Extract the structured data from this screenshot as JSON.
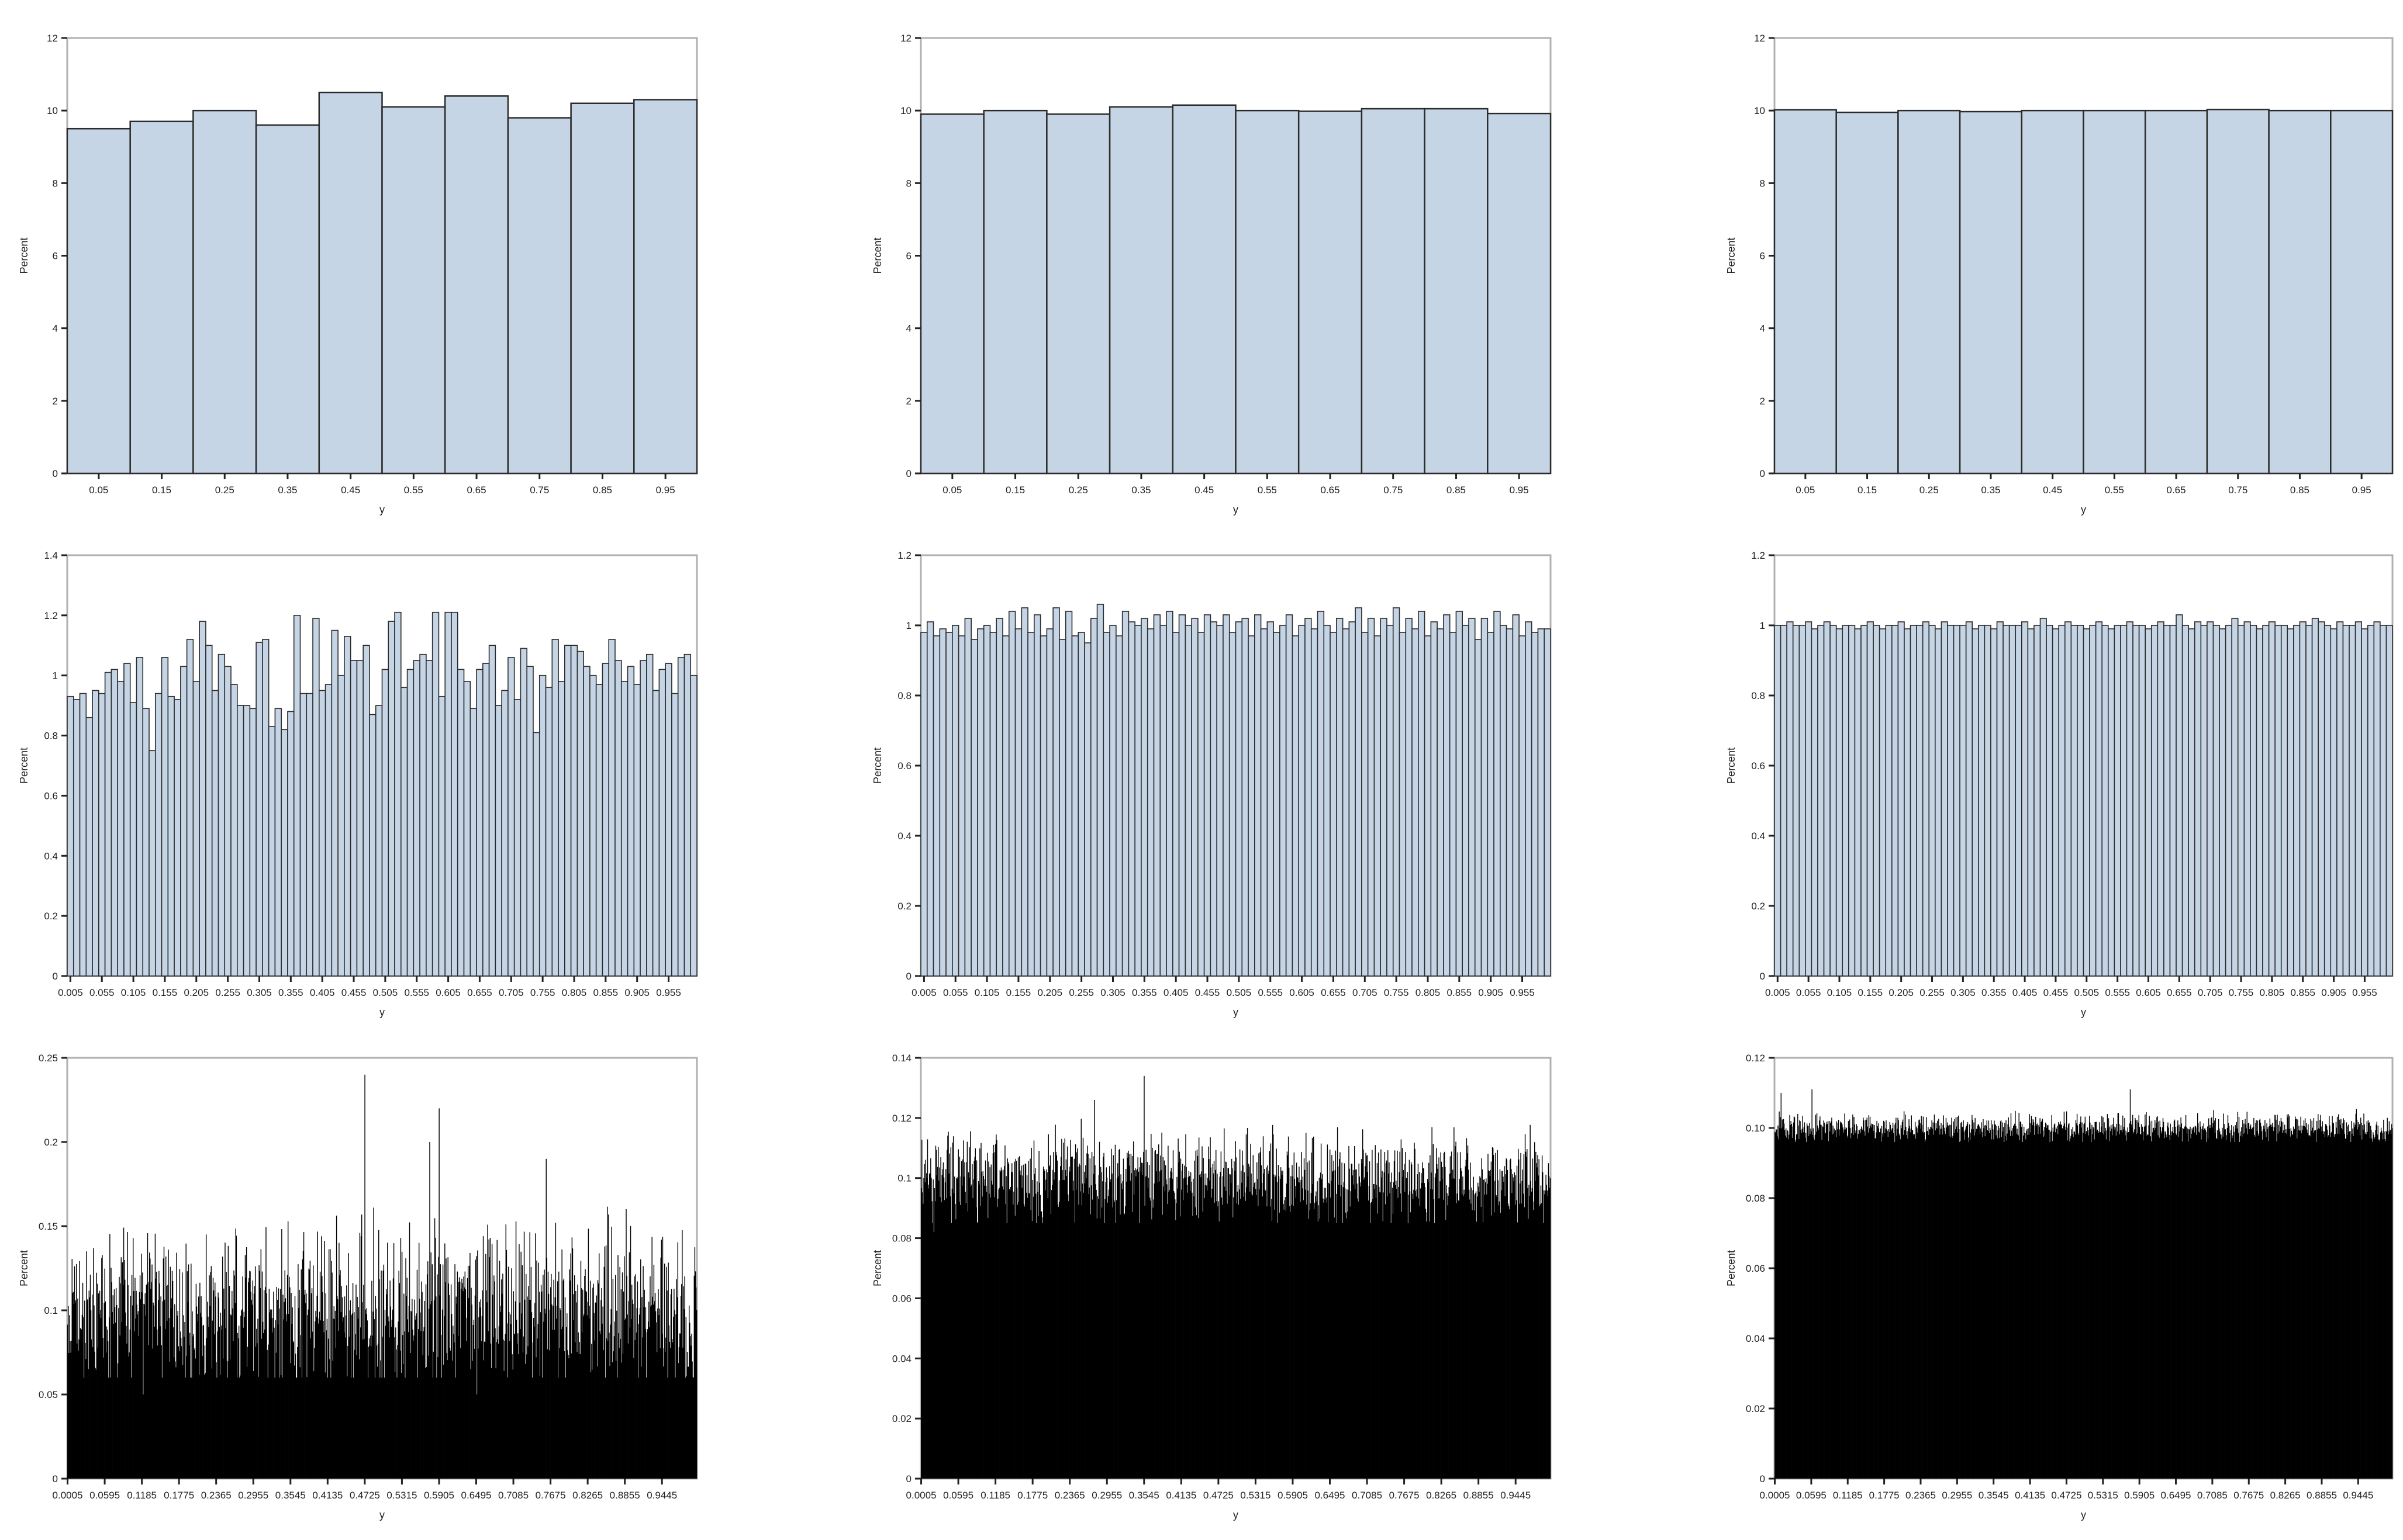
{
  "chart_data": [
    {
      "type": "bar",
      "bar_style": "histogram",
      "bar_fill": "#c5d5e5",
      "bar_stroke": "#2b2b2b",
      "xlabel": "y",
      "ylabel": "Percent",
      "ylim": [
        0,
        12
      ],
      "yticks": [
        0,
        2,
        4,
        6,
        8,
        10,
        12
      ],
      "xlim": [
        0,
        1
      ],
      "bin_width": 0.1,
      "xticks": [
        0.05,
        0.15,
        0.25,
        0.35,
        0.45,
        0.55,
        0.65,
        0.75,
        0.85,
        0.95
      ],
      "xtick_labels": [
        "0.05",
        "0.15",
        "0.25",
        "0.35",
        "0.45",
        "0.55",
        "0.65",
        "0.75",
        "0.85",
        "0.95"
      ],
      "categories": [
        "0.05",
        "0.15",
        "0.25",
        "0.35",
        "0.45",
        "0.55",
        "0.65",
        "0.75",
        "0.85",
        "0.95"
      ],
      "values": [
        9.5,
        9.7,
        10.0,
        9.6,
        10.5,
        10.1,
        10.4,
        9.8,
        10.2,
        10.3
      ]
    },
    {
      "type": "bar",
      "bar_style": "histogram",
      "bar_fill": "#c5d5e5",
      "bar_stroke": "#2b2b2b",
      "xlabel": "y",
      "ylabel": "Percent",
      "ylim": [
        0,
        12
      ],
      "yticks": [
        0,
        2,
        4,
        6,
        8,
        10,
        12
      ],
      "xlim": [
        0,
        1
      ],
      "bin_width": 0.1,
      "xticks": [
        0.05,
        0.15,
        0.25,
        0.35,
        0.45,
        0.55,
        0.65,
        0.75,
        0.85,
        0.95
      ],
      "xtick_labels": [
        "0.05",
        "0.15",
        "0.25",
        "0.35",
        "0.45",
        "0.55",
        "0.65",
        "0.75",
        "0.85",
        "0.95"
      ],
      "categories": [
        "0.05",
        "0.15",
        "0.25",
        "0.35",
        "0.45",
        "0.55",
        "0.65",
        "0.75",
        "0.85",
        "0.95"
      ],
      "values": [
        9.9,
        10.0,
        9.9,
        10.1,
        10.15,
        10.0,
        9.98,
        10.05,
        10.05,
        9.92
      ]
    },
    {
      "type": "bar",
      "bar_style": "histogram",
      "bar_fill": "#c5d5e5",
      "bar_stroke": "#2b2b2b",
      "xlabel": "y",
      "ylabel": "Percent",
      "ylim": [
        0,
        12
      ],
      "yticks": [
        0,
        2,
        4,
        6,
        8,
        10,
        12
      ],
      "xlim": [
        0,
        1
      ],
      "bin_width": 0.1,
      "xticks": [
        0.05,
        0.15,
        0.25,
        0.35,
        0.45,
        0.55,
        0.65,
        0.75,
        0.85,
        0.95
      ],
      "xtick_labels": [
        "0.05",
        "0.15",
        "0.25",
        "0.35",
        "0.45",
        "0.55",
        "0.65",
        "0.75",
        "0.85",
        "0.95"
      ],
      "categories": [
        "0.05",
        "0.15",
        "0.25",
        "0.35",
        "0.45",
        "0.55",
        "0.65",
        "0.75",
        "0.85",
        "0.95"
      ],
      "values": [
        10.02,
        9.95,
        10.0,
        9.97,
        10.0,
        10.0,
        10.0,
        10.03,
        10.0,
        10.0
      ]
    },
    {
      "type": "bar",
      "bar_style": "histogram",
      "bar_fill": "#c5d5e5",
      "bar_stroke": "#2b2b2b",
      "xlabel": "y",
      "ylabel": "Percent",
      "ylim": [
        0,
        1.4
      ],
      "yticks": [
        0,
        0.2,
        0.4,
        0.6,
        0.8,
        1.0,
        1.2,
        1.4
      ],
      "xlim": [
        0,
        1
      ],
      "bin_width": 0.01,
      "xticks": [
        0.005,
        0.055,
        0.105,
        0.155,
        0.205,
        0.255,
        0.305,
        0.355,
        0.405,
        0.455,
        0.505,
        0.555,
        0.605,
        0.655,
        0.705,
        0.755,
        0.805,
        0.855,
        0.905,
        0.955
      ],
      "xtick_labels": [
        "0.005",
        "0.055",
        "0.105",
        "0.155",
        "0.205",
        "0.255",
        "0.305",
        "0.355",
        "0.405",
        "0.455",
        "0.505",
        "0.555",
        "0.605",
        "0.655",
        "0.705",
        "0.755",
        "0.805",
        "0.855",
        "0.905",
        "0.955"
      ],
      "values": [
        0.93,
        0.92,
        0.94,
        0.86,
        0.95,
        0.94,
        1.01,
        1.02,
        0.98,
        1.04,
        0.91,
        1.06,
        0.89,
        0.75,
        0.94,
        1.06,
        0.93,
        0.92,
        1.03,
        1.12,
        0.98,
        1.18,
        1.1,
        0.95,
        1.07,
        1.03,
        0.97,
        0.9,
        0.9,
        0.89,
        1.11,
        1.12,
        0.83,
        0.89,
        0.82,
        0.88,
        1.2,
        0.94,
        0.94,
        1.19,
        0.95,
        0.97,
        1.15,
        1.0,
        1.13,
        1.05,
        1.05,
        1.1,
        0.87,
        0.9,
        1.02,
        1.18,
        1.21,
        0.96,
        1.02,
        1.05,
        1.07,
        1.05,
        1.21,
        0.93,
        1.21,
        1.21,
        1.02,
        0.98,
        0.89,
        1.02,
        1.04,
        1.1,
        0.9,
        0.95,
        1.06,
        0.92,
        1.09,
        1.03,
        0.81,
        1.0,
        0.96,
        1.12,
        0.98,
        1.1,
        1.1,
        1.08,
        1.03,
        1.0,
        0.97,
        1.04,
        1.12,
        1.05,
        0.98,
        1.03,
        0.97,
        1.05,
        1.07,
        0.95,
        1.02,
        1.04,
        0.94,
        1.06,
        1.07,
        1.0
      ]
    },
    {
      "type": "bar",
      "bar_style": "histogram",
      "bar_fill": "#c5d5e5",
      "bar_stroke": "#2b2b2b",
      "xlabel": "y",
      "ylabel": "Percent",
      "ylim": [
        0,
        1.2
      ],
      "yticks": [
        0,
        0.2,
        0.4,
        0.6,
        0.8,
        1.0,
        1.2
      ],
      "xlim": [
        0,
        1
      ],
      "bin_width": 0.01,
      "xticks": [
        0.005,
        0.055,
        0.105,
        0.155,
        0.205,
        0.255,
        0.305,
        0.355,
        0.405,
        0.455,
        0.505,
        0.555,
        0.605,
        0.655,
        0.705,
        0.755,
        0.805,
        0.855,
        0.905,
        0.955
      ],
      "xtick_labels": [
        "0.005",
        "0.055",
        "0.105",
        "0.155",
        "0.205",
        "0.255",
        "0.305",
        "0.355",
        "0.405",
        "0.455",
        "0.505",
        "0.555",
        "0.605",
        "0.655",
        "0.705",
        "0.755",
        "0.805",
        "0.855",
        "0.905",
        "0.955"
      ],
      "values": [
        0.98,
        1.01,
        0.97,
        0.99,
        0.98,
        1.0,
        0.97,
        1.02,
        0.96,
        0.99,
        1.0,
        0.98,
        1.02,
        0.97,
        1.04,
        0.99,
        1.05,
        0.98,
        1.03,
        0.97,
        0.99,
        1.05,
        0.96,
        1.04,
        0.97,
        0.98,
        0.95,
        1.02,
        1.06,
        0.98,
        1.0,
        0.97,
        1.04,
        1.01,
        1.0,
        1.02,
        0.99,
        1.03,
        1.0,
        1.04,
        0.98,
        1.03,
        1.0,
        1.02,
        0.98,
        1.03,
        1.01,
        1.0,
        1.03,
        0.98,
        1.01,
        1.02,
        0.97,
        1.03,
        0.99,
        1.01,
        0.98,
        1.0,
        1.03,
        0.97,
        1.0,
        1.02,
        0.99,
        1.04,
        1.0,
        0.98,
        1.02,
        0.99,
        1.01,
        1.05,
        0.98,
        1.02,
        0.97,
        1.02,
        1.0,
        1.05,
        0.98,
        1.02,
        0.99,
        1.04,
        0.97,
        1.01,
        0.99,
        1.03,
        0.98,
        1.04,
        1.0,
        1.02,
        0.96,
        1.02,
        0.98,
        1.04,
        1.0,
        0.99,
        1.03,
        0.97,
        1.01,
        0.98,
        0.99,
        0.99
      ]
    },
    {
      "type": "bar",
      "bar_style": "histogram",
      "bar_fill": "#c5d5e5",
      "bar_stroke": "#2b2b2b",
      "xlabel": "y",
      "ylabel": "Percent",
      "ylim": [
        0,
        1.2
      ],
      "yticks": [
        0,
        0.2,
        0.4,
        0.6,
        0.8,
        1.0,
        1.2
      ],
      "xlim": [
        0,
        1
      ],
      "bin_width": 0.01,
      "xticks": [
        0.005,
        0.055,
        0.105,
        0.155,
        0.205,
        0.255,
        0.305,
        0.355,
        0.405,
        0.455,
        0.505,
        0.555,
        0.605,
        0.655,
        0.705,
        0.755,
        0.805,
        0.855,
        0.905,
        0.955
      ],
      "xtick_labels": [
        "0.005",
        "0.055",
        "0.105",
        "0.155",
        "0.205",
        "0.255",
        "0.305",
        "0.355",
        "0.405",
        "0.455",
        "0.505",
        "0.555",
        "0.605",
        "0.655",
        "0.705",
        "0.755",
        "0.805",
        "0.855",
        "0.905",
        "0.955"
      ],
      "values": [
        1.0,
        1.0,
        1.01,
        1.0,
        1.0,
        1.01,
        0.99,
        1.0,
        1.01,
        1.0,
        0.99,
        1.0,
        1.0,
        0.99,
        1.0,
        1.01,
        1.0,
        0.99,
        1.0,
        1.0,
        1.01,
        0.99,
        1.0,
        1.0,
        1.01,
        1.0,
        0.99,
        1.01,
        1.0,
        1.0,
        1.0,
        1.01,
        0.99,
        1.0,
        1.0,
        0.99,
        1.01,
        1.0,
        1.0,
        1.0,
        1.01,
        0.99,
        1.0,
        1.02,
        1.0,
        0.99,
        1.0,
        1.01,
        1.0,
        1.0,
        0.99,
        1.0,
        1.01,
        1.0,
        0.99,
        1.0,
        1.0,
        1.01,
        1.0,
        1.0,
        0.99,
        1.0,
        1.01,
        1.0,
        1.0,
        1.03,
        1.0,
        0.99,
        1.01,
        1.0,
        1.01,
        1.0,
        0.99,
        1.0,
        1.02,
        1.0,
        1.01,
        1.0,
        0.99,
        1.0,
        1.01,
        1.0,
        1.0,
        0.99,
        1.0,
        1.01,
        1.0,
        1.02,
        1.01,
        1.0,
        0.99,
        1.01,
        1.0,
        1.0,
        1.01,
        0.99,
        1.0,
        1.01,
        1.0,
        1.0
      ]
    },
    {
      "type": "bar",
      "bar_style": "dense-histogram",
      "bar_fill": "#000000",
      "bar_stroke": "#000000",
      "xlabel": "y",
      "ylabel": "Percent",
      "ylim": [
        0,
        0.25
      ],
      "yticks": [
        0,
        0.05,
        0.1,
        0.15,
        0.2,
        0.25
      ],
      "xlim": [
        0,
        1
      ],
      "bin_width": 0.001,
      "xticks": [
        0.0005,
        0.0595,
        0.1185,
        0.1775,
        0.2365,
        0.2955,
        0.3545,
        0.4135,
        0.4725,
        0.5315,
        0.5905,
        0.6495,
        0.7085,
        0.7675,
        0.8265,
        0.8855,
        0.9445
      ],
      "xtick_labels": [
        "0.0005",
        "0.0595",
        "0.1185",
        "0.1775",
        "0.2365",
        "0.2955",
        "0.3545",
        "0.4135",
        "0.4725",
        "0.5315",
        "0.5905",
        "0.6495",
        "0.7085",
        "0.7675",
        "0.8265",
        "0.8855",
        "0.9445"
      ],
      "bin_count": 1000,
      "typical_percent": 0.1,
      "typical_min": 0.06,
      "typical_max": 0.17,
      "peaks": [
        {
          "x": 0.4725,
          "percent": 0.24
        },
        {
          "x": 0.59,
          "percent": 0.22
        },
        {
          "x": 0.575,
          "percent": 0.2
        },
        {
          "x": 0.76,
          "percent": 0.19
        }
      ],
      "min_bins": [
        {
          "x": 0.12,
          "percent": 0.05
        },
        {
          "x": 0.65,
          "percent": 0.05
        }
      ]
    },
    {
      "type": "bar",
      "bar_style": "dense-histogram",
      "bar_fill": "#000000",
      "bar_stroke": "#000000",
      "xlabel": "y",
      "ylabel": "Percent",
      "ylim": [
        0,
        0.14
      ],
      "yticks": [
        0,
        0.02,
        0.04,
        0.06,
        0.08,
        0.1,
        0.12,
        0.14
      ],
      "xlim": [
        0,
        1
      ],
      "bin_width": 0.001,
      "xticks": [
        0.0005,
        0.0595,
        0.1185,
        0.1775,
        0.2365,
        0.2955,
        0.3545,
        0.4135,
        0.4725,
        0.5315,
        0.5905,
        0.6495,
        0.7085,
        0.7675,
        0.8265,
        0.8855,
        0.9445
      ],
      "xtick_labels": [
        "0.0005",
        "0.0595",
        "0.1185",
        "0.1775",
        "0.2365",
        "0.2955",
        "0.3545",
        "0.4135",
        "0.4725",
        "0.5315",
        "0.5905",
        "0.6495",
        "0.7085",
        "0.7675",
        "0.8265",
        "0.8855",
        "0.9445"
      ],
      "bin_count": 1000,
      "typical_percent": 0.1,
      "typical_min": 0.085,
      "typical_max": 0.122,
      "peaks": [
        {
          "x": 0.3545,
          "percent": 0.134
        },
        {
          "x": 0.275,
          "percent": 0.126
        }
      ],
      "min_bins": [
        {
          "x": 0.02,
          "percent": 0.082
        }
      ]
    },
    {
      "type": "bar",
      "bar_style": "dense-histogram",
      "bar_fill": "#000000",
      "bar_stroke": "#000000",
      "xlabel": "y",
      "ylabel": "Percent",
      "ylim": [
        0,
        0.12
      ],
      "yticks": [
        0,
        0.02,
        0.04,
        0.06,
        0.08,
        0.1,
        0.12
      ],
      "ytick_labels": [
        "0",
        "0.02",
        "0.04",
        "0.06",
        "0.08",
        "0.10",
        "0.12"
      ],
      "xlim": [
        0,
        1
      ],
      "bin_width": 0.001,
      "xticks": [
        0.0005,
        0.0595,
        0.1185,
        0.1775,
        0.2365,
        0.2955,
        0.3545,
        0.4135,
        0.4725,
        0.5315,
        0.5905,
        0.6495,
        0.7085,
        0.7675,
        0.8265,
        0.8855,
        0.9445
      ],
      "xtick_labels": [
        "0.0005",
        "0.0595",
        "0.1185",
        "0.1775",
        "0.2365",
        "0.2955",
        "0.3545",
        "0.4135",
        "0.4725",
        "0.5315",
        "0.5905",
        "0.6495",
        "0.7085",
        "0.7675",
        "0.8265",
        "0.8855",
        "0.9445"
      ],
      "bin_count": 1000,
      "typical_percent": 0.1,
      "typical_min": 0.096,
      "typical_max": 0.106,
      "peaks": [
        {
          "x": 0.01,
          "percent": 0.11
        },
        {
          "x": 0.06,
          "percent": 0.111
        },
        {
          "x": 0.575,
          "percent": 0.111
        }
      ],
      "min_bins": []
    }
  ]
}
